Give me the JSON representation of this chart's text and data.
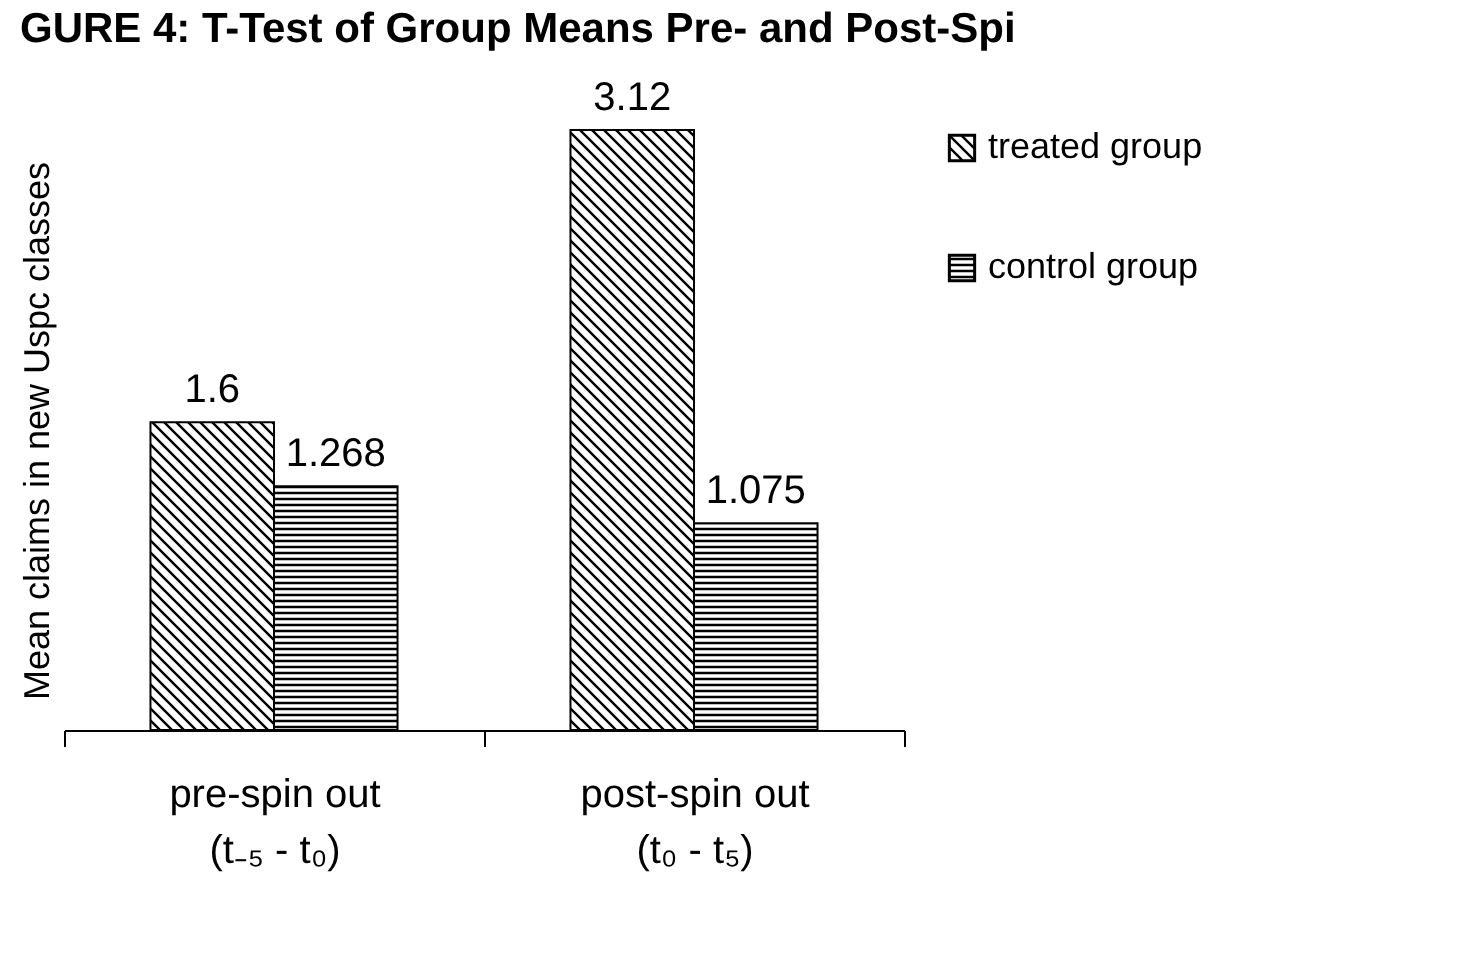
{
  "chart_data": {
    "type": "bar",
    "title": "GURE 4: T-Test of Group Means Pre- and Post-Spi",
    "ylabel": "Mean claims in new Uspc classes",
    "categories": [
      "pre-spin out\n(t₋₅ -  t₀)",
      "post-spin out\n(t₀ - t₅)"
    ],
    "series": [
      {
        "name": "treated group",
        "color": "#000000",
        "values": [
          1.6,
          3.12
        ]
      },
      {
        "name": "control group",
        "color": "#000000",
        "values": [
          1.268,
          1.075
        ]
      }
    ],
    "relative": false,
    "data_labels": true,
    "legend": "right",
    "grid": false
  }
}
